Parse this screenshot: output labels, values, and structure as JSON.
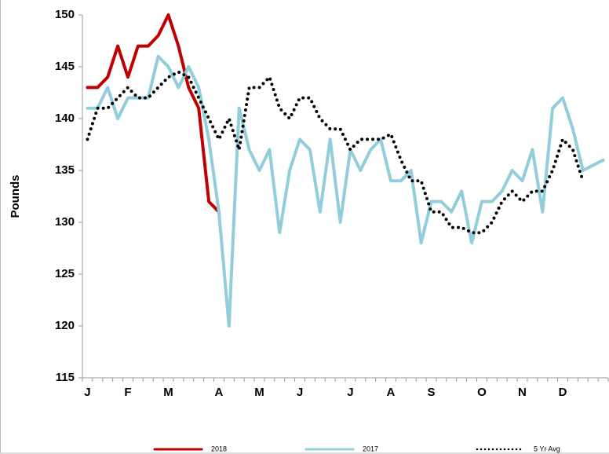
{
  "chart_data": {
    "type": "line",
    "y_label": "Pounds",
    "categories": [
      "J",
      null,
      null,
      null,
      "F",
      null,
      null,
      null,
      "M",
      null,
      null,
      null,
      null,
      "A",
      null,
      null,
      null,
      "M",
      null,
      null,
      null,
      "J",
      null,
      null,
      null,
      null,
      "J",
      null,
      null,
      null,
      "A",
      null,
      null,
      null,
      "S",
      null,
      null,
      null,
      null,
      "O",
      null,
      null,
      null,
      "N",
      null,
      null,
      null,
      "D",
      null,
      null,
      null,
      null
    ],
    "series": [
      {
        "name": "2018",
        "color": "#c00000",
        "style": "solid",
        "values": [
          143,
          143,
          144,
          147,
          144,
          147,
          147,
          148,
          150.5,
          147,
          143,
          141,
          132,
          131,
          null,
          null,
          null,
          null,
          null,
          null,
          null,
          null,
          null,
          null,
          null,
          null,
          null,
          null,
          null,
          null,
          null,
          null,
          null,
          null,
          null,
          null,
          null,
          null,
          null,
          null,
          null,
          null,
          null,
          null,
          null,
          null,
          null,
          null,
          null,
          null,
          null,
          null
        ]
      },
      {
        "name": "2017",
        "color": "#92cddc",
        "style": "solid",
        "values": [
          141,
          141,
          143,
          140,
          142,
          142,
          142,
          146,
          145,
          143,
          145,
          143,
          138,
          131,
          120,
          141,
          137,
          135,
          137,
          129,
          135,
          138,
          137,
          131,
          138,
          130,
          137,
          135,
          137,
          138,
          134,
          134,
          135,
          128,
          132,
          132,
          131,
          133,
          128,
          132,
          132,
          133,
          135,
          134,
          137,
          131,
          141,
          142,
          139,
          135,
          135.5,
          136
        ]
      },
      {
        "name": "5 Yr Avg",
        "color": "#000000",
        "style": "dotted",
        "values": [
          138,
          141,
          141,
          142,
          143,
          142,
          142,
          143,
          144,
          144.5,
          144,
          142,
          140,
          138,
          140,
          137,
          143,
          143,
          144,
          141,
          140,
          142,
          142,
          140,
          139,
          139,
          137,
          138,
          138,
          138,
          138.5,
          136,
          134,
          134,
          131,
          131,
          129.5,
          129.5,
          129,
          129,
          130,
          132,
          133,
          132,
          133,
          133,
          135,
          138,
          137,
          134,
          null,
          null
        ]
      }
    ],
    "ylim": [
      115,
      150
    ],
    "yticks": [
      115,
      120,
      125,
      130,
      135,
      140,
      145,
      150
    ],
    "grid": false,
    "legend": "bottom"
  }
}
